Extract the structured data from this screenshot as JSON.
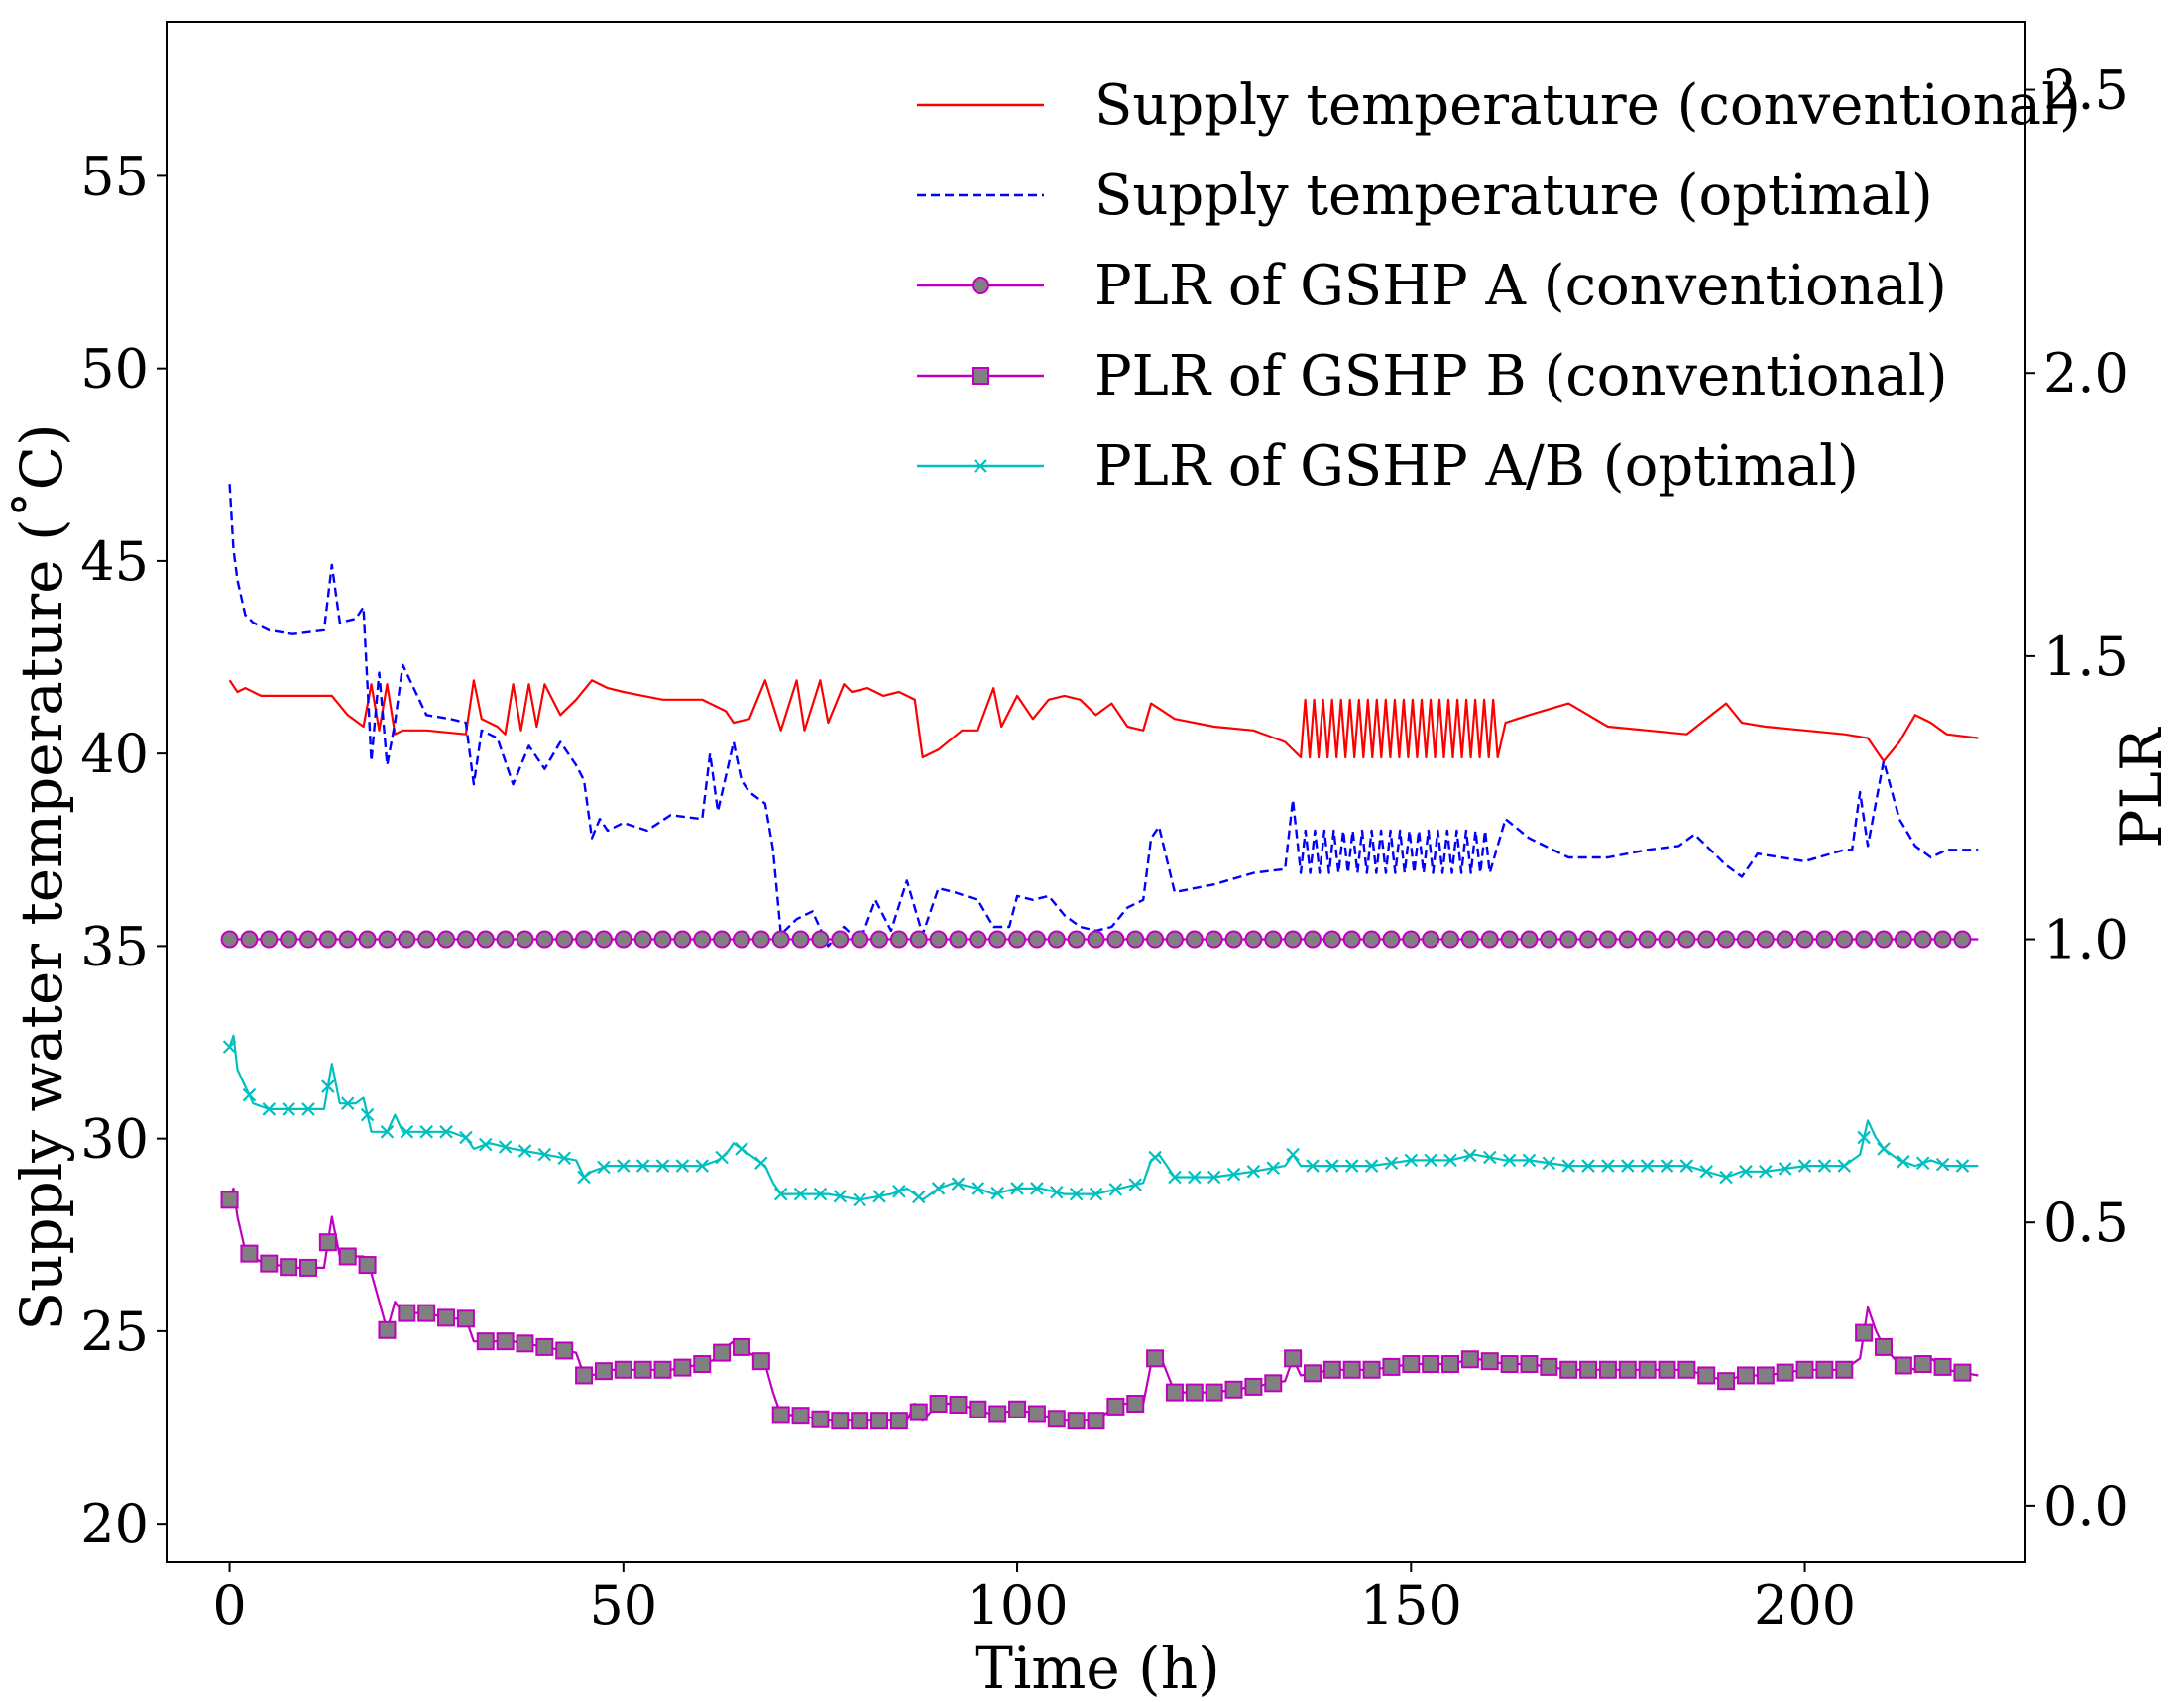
{
  "chart_data": {
    "type": "line",
    "title": "",
    "xlabel": "Time (h)",
    "ylabel_left": "Supply water temperature (˚C)",
    "ylabel_right": "PLR",
    "xlim": [
      -8,
      228
    ],
    "ylim_left": [
      19,
      59
    ],
    "ylim_right": [
      -0.1,
      2.62
    ],
    "x_ticks": [
      0,
      50,
      100,
      150,
      200
    ],
    "y_ticks_left": [
      20,
      25,
      30,
      35,
      40,
      45,
      50,
      55
    ],
    "y_ticks_right": [
      0.0,
      0.5,
      1.0,
      1.5,
      2.0,
      2.5
    ],
    "y_tick_labels_right": [
      "0.0",
      "0.5",
      "1.0",
      "1.5",
      "2.0",
      "2.5"
    ],
    "grid": false,
    "legend_position": "top-right",
    "series": [
      {
        "name": "Supply temperature (conventional)",
        "axis": "left",
        "color": "#ff0000",
        "style": "solid",
        "marker": "none",
        "x": [
          0,
          1,
          2,
          4,
          8,
          13,
          15,
          17,
          18,
          19,
          20,
          21,
          22,
          25,
          30,
          31,
          32,
          34,
          35,
          36,
          37,
          38,
          39,
          40,
          42,
          44,
          46,
          48,
          50,
          55,
          60,
          63,
          64,
          66,
          68,
          70,
          72,
          73,
          75,
          76,
          78,
          79,
          81,
          83,
          85,
          87,
          88,
          90,
          93,
          95,
          97,
          98,
          100,
          102,
          104,
          106,
          108,
          110,
          112,
          114,
          116,
          117,
          120,
          125,
          130,
          134,
          136,
          161,
          162,
          165,
          170,
          175,
          180,
          185,
          190,
          192,
          195,
          200,
          205,
          208,
          210,
          212,
          214,
          216,
          218,
          222
        ],
        "y": [
          41.9,
          41.6,
          41.7,
          41.5,
          41.5,
          41.5,
          41.0,
          40.7,
          41.8,
          40.6,
          41.8,
          40.5,
          40.6,
          40.6,
          40.5,
          41.9,
          40.9,
          40.7,
          40.5,
          41.8,
          40.6,
          41.8,
          40.7,
          41.8,
          41.0,
          41.4,
          41.9,
          41.7,
          41.6,
          41.4,
          41.4,
          41.1,
          40.8,
          40.9,
          41.9,
          40.6,
          41.9,
          40.6,
          41.9,
          40.8,
          41.8,
          41.6,
          41.7,
          41.5,
          41.6,
          41.4,
          39.9,
          40.1,
          40.6,
          40.6,
          41.7,
          40.7,
          41.5,
          40.9,
          41.4,
          41.5,
          41.4,
          41.0,
          41.3,
          40.7,
          40.6,
          41.3,
          40.9,
          40.7,
          40.6,
          40.3,
          40.8,
          39.8,
          40.8,
          41.0,
          41.3,
          40.7,
          40.6,
          40.5,
          41.3,
          40.8,
          40.7,
          40.6,
          40.5,
          40.4,
          39.8,
          40.3,
          41.0,
          40.8,
          40.5,
          40.4
        ],
        "oscillation": {
          "x_start": 136,
          "x_end": 161,
          "cycles": 22,
          "low": 39.9,
          "high": 41.4
        }
      },
      {
        "name": "Supply temperature (optimal)",
        "axis": "left",
        "color": "#0000ff",
        "style": "dashed",
        "marker": "none",
        "x": [
          0,
          0.5,
          1,
          2,
          3,
          5,
          8,
          12,
          13,
          14,
          16,
          17,
          18,
          19,
          20,
          21,
          22,
          25,
          28,
          30,
          31,
          32,
          34,
          36,
          38,
          40,
          42,
          44,
          45,
          46,
          47,
          48,
          50,
          53,
          56,
          60,
          61,
          62,
          63,
          64,
          65,
          66,
          68,
          69,
          70,
          72,
          74,
          76,
          78,
          80,
          82,
          84,
          86,
          88,
          90,
          92,
          95,
          97,
          99,
          100,
          102,
          104,
          106,
          108,
          110,
          112,
          114,
          116,
          117,
          118,
          120,
          125,
          130,
          134,
          135,
          136,
          160,
          162,
          165,
          170,
          175,
          180,
          184,
          186,
          190,
          192,
          194,
          200,
          205,
          206,
          207,
          208,
          210,
          212,
          214,
          216,
          218,
          222
        ],
        "y": [
          47.0,
          45.3,
          44.5,
          43.6,
          43.4,
          43.2,
          43.1,
          43.2,
          44.9,
          43.4,
          43.5,
          43.8,
          39.8,
          42.1,
          39.7,
          40.8,
          42.3,
          41.0,
          40.9,
          40.8,
          39.2,
          40.6,
          40.4,
          39.2,
          40.2,
          39.6,
          40.3,
          39.7,
          39.3,
          37.8,
          38.3,
          38.0,
          38.2,
          38.0,
          38.4,
          38.3,
          40.0,
          38.5,
          39.4,
          40.3,
          39.3,
          39.0,
          38.7,
          37.5,
          35.3,
          35.7,
          35.9,
          35.0,
          35.5,
          35.1,
          36.2,
          35.4,
          36.7,
          35.3,
          36.5,
          36.4,
          36.2,
          35.5,
          35.5,
          36.3,
          36.2,
          36.3,
          35.8,
          35.5,
          35.4,
          35.5,
          36.0,
          36.2,
          37.8,
          38.1,
          36.4,
          36.6,
          36.9,
          37.0,
          38.8,
          37.3,
          37.6,
          38.3,
          37.8,
          37.3,
          37.3,
          37.5,
          37.6,
          37.9,
          37.1,
          36.8,
          37.4,
          37.2,
          37.5,
          37.5,
          39.0,
          37.6,
          39.8,
          38.3,
          37.6,
          37.3,
          37.5,
          37.5
        ],
        "oscillation": {
          "x_start": 136,
          "x_end": 160,
          "cycles": 20,
          "low": 36.9,
          "high": 38.0
        }
      },
      {
        "name": "PLR of GSHP A (conventional)",
        "axis": "right",
        "color": "#bf00bf",
        "marker_fill": "#808080",
        "style": "solid",
        "marker": "circle",
        "x": [
          0,
          222
        ],
        "y": [
          1.0,
          1.0
        ]
      },
      {
        "name": "PLR of GSHP B (conventional)",
        "axis": "right",
        "color": "#bf00bf",
        "marker_fill": "#808080",
        "style": "solid",
        "marker": "square",
        "x": [
          0,
          0.5,
          1,
          2,
          4,
          8,
          12,
          13,
          14,
          16,
          17,
          18,
          20,
          21,
          22,
          25,
          28,
          30,
          31,
          33,
          36,
          40,
          44,
          45,
          46,
          48,
          52,
          56,
          60,
          62,
          63,
          64,
          66,
          68,
          69,
          70,
          72,
          76,
          80,
          84,
          86,
          87,
          88,
          90,
          92,
          95,
          97,
          100,
          103,
          106,
          110,
          113,
          116,
          117,
          118,
          120,
          125,
          130,
          134,
          135,
          136,
          140,
          145,
          150,
          155,
          158,
          162,
          165,
          170,
          175,
          180,
          185,
          190,
          192,
          195,
          200,
          205,
          207,
          208,
          209,
          210,
          212,
          214,
          216,
          218,
          222
        ],
        "y": [
          0.54,
          0.56,
          0.51,
          0.45,
          0.43,
          0.42,
          0.42,
          0.51,
          0.44,
          0.44,
          0.44,
          0.41,
          0.31,
          0.36,
          0.34,
          0.34,
          0.33,
          0.33,
          0.29,
          0.29,
          0.29,
          0.28,
          0.27,
          0.23,
          0.23,
          0.24,
          0.24,
          0.24,
          0.25,
          0.26,
          0.28,
          0.29,
          0.27,
          0.25,
          0.2,
          0.16,
          0.16,
          0.15,
          0.15,
          0.15,
          0.15,
          0.18,
          0.15,
          0.18,
          0.18,
          0.17,
          0.16,
          0.17,
          0.16,
          0.15,
          0.15,
          0.18,
          0.18,
          0.25,
          0.27,
          0.2,
          0.2,
          0.21,
          0.22,
          0.26,
          0.23,
          0.24,
          0.24,
          0.25,
          0.25,
          0.26,
          0.25,
          0.25,
          0.24,
          0.24,
          0.24,
          0.24,
          0.22,
          0.23,
          0.23,
          0.24,
          0.24,
          0.26,
          0.35,
          0.31,
          0.28,
          0.25,
          0.24,
          0.26,
          0.24,
          0.23
        ]
      },
      {
        "name": "PLR of GSHP A/B (optimal)",
        "axis": "right",
        "color": "#00bfbf",
        "style": "solid",
        "marker": "x",
        "x": [
          0,
          0.5,
          1,
          2,
          3,
          5,
          8,
          12,
          13,
          14,
          16,
          17,
          18,
          20,
          21,
          22,
          25,
          28,
          30,
          31,
          33,
          36,
          40,
          44,
          45,
          46,
          48,
          52,
          56,
          60,
          62,
          63,
          64,
          66,
          68,
          69,
          70,
          72,
          76,
          80,
          84,
          86,
          88,
          90,
          92,
          95,
          97,
          100,
          103,
          106,
          110,
          113,
          116,
          117,
          118,
          120,
          125,
          130,
          134,
          135,
          136,
          140,
          145,
          150,
          155,
          158,
          162,
          165,
          170,
          175,
          180,
          185,
          190,
          192,
          195,
          200,
          205,
          207,
          208,
          209,
          210,
          212,
          214,
          216,
          218,
          222
        ],
        "y": [
          0.81,
          0.83,
          0.77,
          0.74,
          0.71,
          0.7,
          0.7,
          0.7,
          0.78,
          0.71,
          0.71,
          0.72,
          0.66,
          0.66,
          0.69,
          0.66,
          0.66,
          0.66,
          0.65,
          0.63,
          0.64,
          0.63,
          0.62,
          0.61,
          0.58,
          0.59,
          0.6,
          0.6,
          0.6,
          0.6,
          0.61,
          0.62,
          0.64,
          0.62,
          0.6,
          0.57,
          0.55,
          0.55,
          0.55,
          0.54,
          0.55,
          0.56,
          0.54,
          0.56,
          0.57,
          0.56,
          0.55,
          0.56,
          0.56,
          0.55,
          0.55,
          0.56,
          0.57,
          0.61,
          0.62,
          0.58,
          0.58,
          0.59,
          0.6,
          0.62,
          0.6,
          0.6,
          0.6,
          0.61,
          0.61,
          0.62,
          0.61,
          0.61,
          0.6,
          0.6,
          0.6,
          0.6,
          0.58,
          0.59,
          0.59,
          0.6,
          0.6,
          0.62,
          0.68,
          0.65,
          0.63,
          0.61,
          0.6,
          0.61,
          0.6,
          0.6
        ]
      }
    ]
  }
}
